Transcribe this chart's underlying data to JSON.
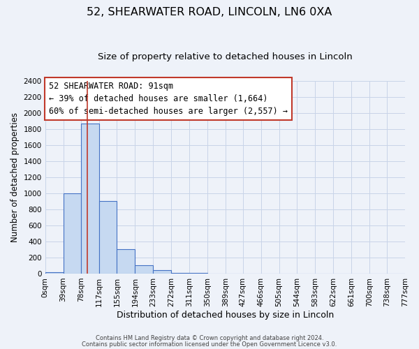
{
  "title": "52, SHEARWATER ROAD, LINCOLN, LN6 0XA",
  "subtitle": "Size of property relative to detached houses in Lincoln",
  "xlabel": "Distribution of detached houses by size in Lincoln",
  "ylabel": "Number of detached properties",
  "bin_edges": [
    0,
    39,
    78,
    117,
    155,
    194,
    233,
    272,
    311,
    350,
    389,
    427,
    466,
    505,
    544,
    583,
    622,
    661,
    700,
    738,
    777
  ],
  "bin_labels": [
    "0sqm",
    "39sqm",
    "78sqm",
    "117sqm",
    "155sqm",
    "194sqm",
    "233sqm",
    "272sqm",
    "311sqm",
    "350sqm",
    "389sqm",
    "427sqm",
    "466sqm",
    "505sqm",
    "544sqm",
    "583sqm",
    "622sqm",
    "661sqm",
    "700sqm",
    "738sqm",
    "777sqm"
  ],
  "bar_heights": [
    20,
    1000,
    1870,
    900,
    300,
    100,
    40,
    10,
    5,
    2,
    0,
    0,
    0,
    0,
    0,
    0,
    0,
    0,
    0,
    0
  ],
  "bar_color": "#c6d9f1",
  "bar_edge_color": "#4472c4",
  "property_line_x": 91,
  "property_line_color": "#c0392b",
  "ann_line1": "52 SHEARWATER ROAD: 91sqm",
  "ann_line2": "← 39% of detached houses are smaller (1,664)",
  "ann_line3": "60% of semi-detached houses are larger (2,557) →",
  "ylim": [
    0,
    2400
  ],
  "yticks": [
    0,
    200,
    400,
    600,
    800,
    1000,
    1200,
    1400,
    1600,
    1800,
    2000,
    2200,
    2400
  ],
  "grid_color": "#c8d4e8",
  "background_color": "#eef2f9",
  "plot_bg_color": "#eef2f9",
  "footer_line1": "Contains HM Land Registry data © Crown copyright and database right 2024.",
  "footer_line2": "Contains public sector information licensed under the Open Government Licence v3.0.",
  "title_fontsize": 11.5,
  "subtitle_fontsize": 9.5,
  "xlabel_fontsize": 9,
  "ylabel_fontsize": 8.5,
  "tick_fontsize": 7.5,
  "ann_fontsize": 8.5,
  "footer_fontsize": 6
}
